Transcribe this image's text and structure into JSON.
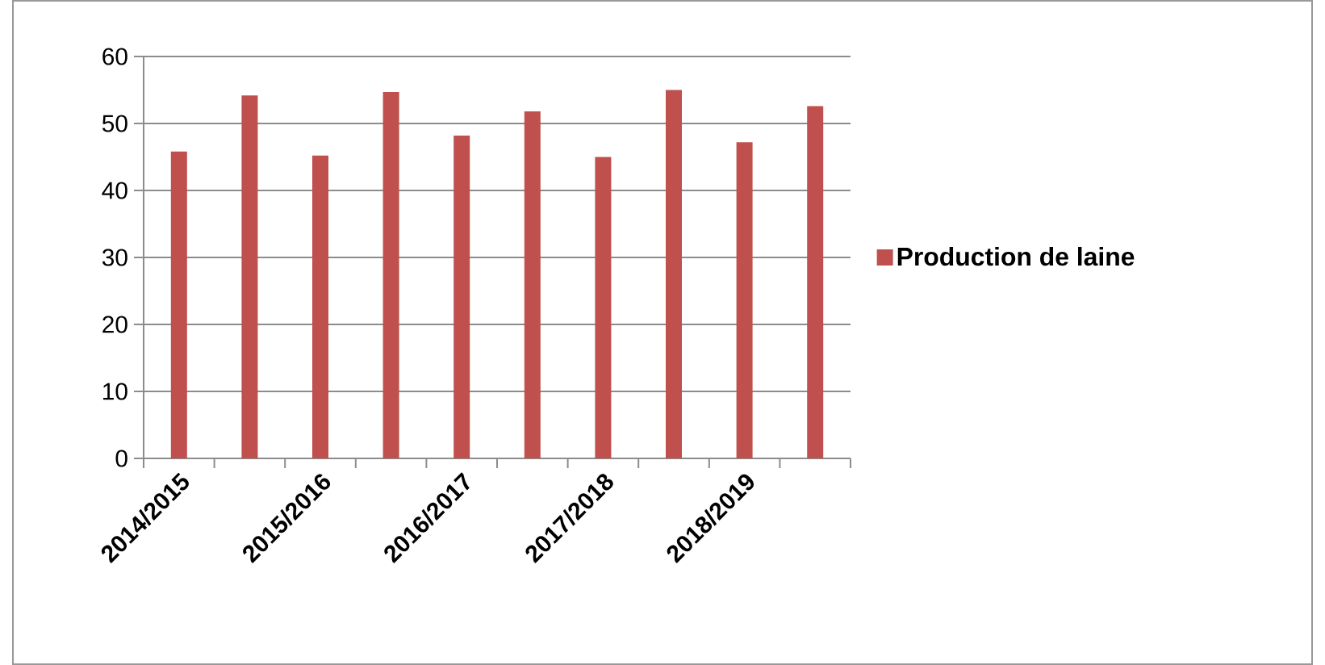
{
  "chart_data": {
    "type": "bar",
    "categories": [
      "2014/2015",
      null,
      "2015/2016",
      null,
      "2016/2017",
      null,
      "2017/2018",
      null,
      "2018/2019",
      null
    ],
    "series": [
      {
        "name": "Production de laine",
        "color": "#c0504d",
        "values": [
          45.8,
          54.2,
          45.2,
          54.7,
          48.2,
          51.8,
          45.0,
          55.0,
          47.2,
          52.6
        ]
      }
    ],
    "ylim": [
      0,
      60
    ],
    "yticks": [
      0,
      10,
      20,
      30,
      40,
      50,
      60
    ],
    "grid": "y",
    "legend": "right"
  }
}
